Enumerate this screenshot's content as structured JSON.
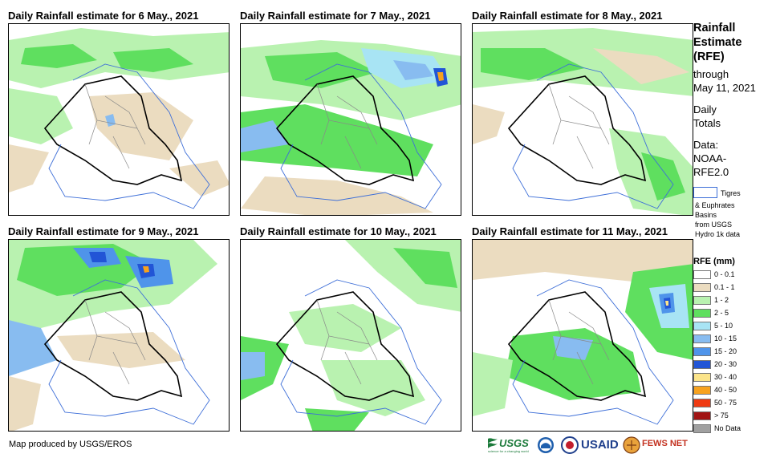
{
  "panels": [
    {
      "title": "Daily Rainfall estimate for 6 May., 2021"
    },
    {
      "title": "Daily Rainfall estimate for 7 May., 2021"
    },
    {
      "title": "Daily Rainfall estimate for 8 May., 2021"
    },
    {
      "title": "Daily Rainfall estimate for 9 May., 2021"
    },
    {
      "title": "Daily Rainfall estimate for 10 May., 2021"
    },
    {
      "title": "Daily Rainfall estimate for 11 May., 2021"
    }
  ],
  "sidebar": {
    "title_line1": "Rainfall",
    "title_line2": "Estimate",
    "title_line3": "(RFE)",
    "through": "through",
    "date": "May 11, 2021",
    "daily": "Daily",
    "totals": "Totals",
    "data_label": "Data:",
    "data_src1": "NOAA-",
    "data_src2": "RFE2.0",
    "basin_label": "Tigres",
    "basin_desc1": "& Euphrates",
    "basin_desc2": "Basins",
    "basin_desc3": "from USGS",
    "basin_desc4": "Hydro 1k data"
  },
  "legend": {
    "title": "RFE (mm)",
    "items": [
      {
        "label": "0 - 0.1",
        "color": "#ffffff"
      },
      {
        "label": "0.1 - 1",
        "color": "#ebdcc0"
      },
      {
        "label": "1 - 2",
        "color": "#b9f2b0"
      },
      {
        "label": "2 - 5",
        "color": "#5fdf5f"
      },
      {
        "label": "5 - 10",
        "color": "#a8e4f4"
      },
      {
        "label": "10 - 15",
        "color": "#88bcf0"
      },
      {
        "label": "15 - 20",
        "color": "#4f94ea"
      },
      {
        "label": "20 - 30",
        "color": "#2255d6"
      },
      {
        "label": "30 - 40",
        "color": "#fbe48a"
      },
      {
        "label": "40 - 50",
        "color": "#f7a21e"
      },
      {
        "label": "50 - 75",
        "color": "#ef3a12"
      },
      {
        "label": "> 75",
        "color": "#a11414"
      },
      {
        "label": "No Data",
        "color": "#a0a0a0"
      }
    ]
  },
  "footer": {
    "credit": "Map produced by USGS/EROS",
    "logo_usgs": "USGS",
    "logo_usgs_tagline": "science for a changing world",
    "logo_usaid": "USAID",
    "logo_fews": "FEWS NET"
  }
}
